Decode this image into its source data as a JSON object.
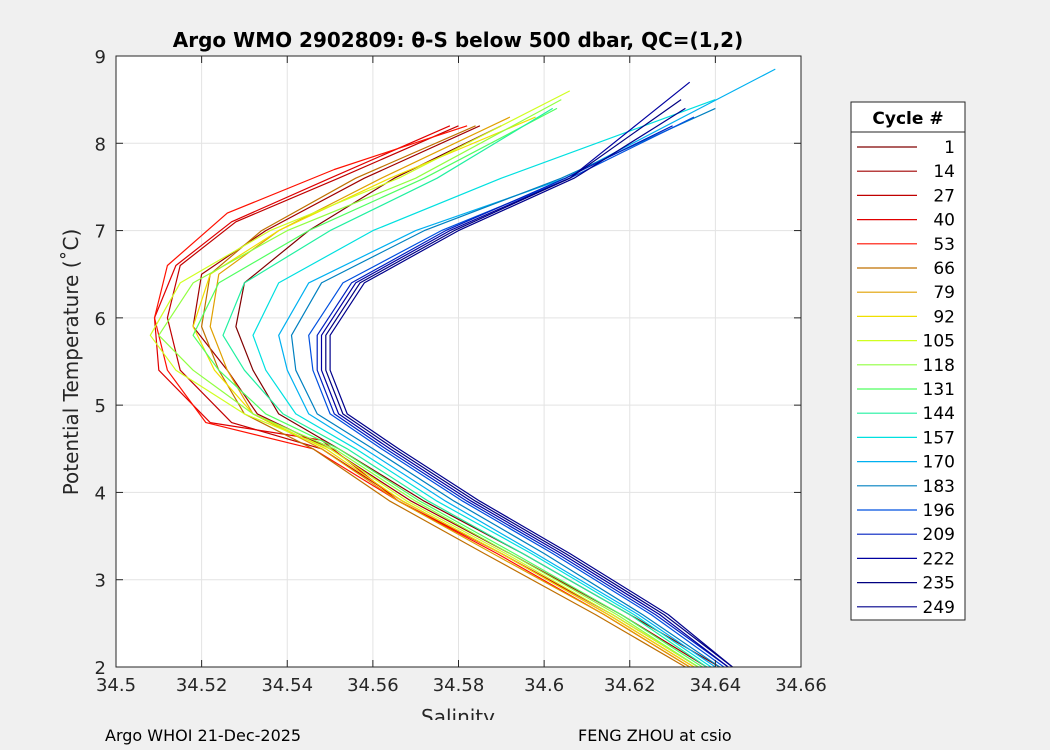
{
  "chart_data": {
    "type": "line",
    "title": "Argo WMO 2902809: θ-S below 500 dbar,  QC=(1,2)",
    "xlabel": "Salinity",
    "ylabel": "Potential Temperature (˚C)",
    "xlim": [
      34.5,
      34.66
    ],
    "ylim": [
      2,
      9
    ],
    "xticks": [
      "34.5",
      "34.52",
      "34.54",
      "34.56",
      "34.58",
      "34.6",
      "34.62",
      "34.64",
      "34.66"
    ],
    "yticks": [
      "2",
      "3",
      "4",
      "5",
      "6",
      "7",
      "8",
      "9"
    ],
    "grid": true,
    "legend": {
      "title": "Cycle #",
      "placement": "right-outside",
      "entries": [
        {
          "label": "1",
          "color": "#800000"
        },
        {
          "label": "14",
          "color": "#a00000"
        },
        {
          "label": "27",
          "color": "#c00000"
        },
        {
          "label": "40",
          "color": "#e00000"
        },
        {
          "label": "53",
          "color": "#ff1000"
        },
        {
          "label": "66",
          "color": "#c07000"
        },
        {
          "label": "79",
          "color": "#e0a000"
        },
        {
          "label": "92",
          "color": "#f0e000"
        },
        {
          "label": "105",
          "color": "#d0ff20"
        },
        {
          "label": "118",
          "color": "#90ff40"
        },
        {
          "label": "131",
          "color": "#50ff60"
        },
        {
          "label": "144",
          "color": "#20f0a0"
        },
        {
          "label": "157",
          "color": "#00e0e0"
        },
        {
          "label": "170",
          "color": "#00b0f0"
        },
        {
          "label": "183",
          "color": "#0080c0"
        },
        {
          "label": "196",
          "color": "#0050e0"
        },
        {
          "label": "209",
          "color": "#0020c0"
        },
        {
          "label": "222",
          "color": "#0000a0"
        },
        {
          "label": "235",
          "color": "#000080"
        },
        {
          "label": "249",
          "color": "#00008c"
        }
      ]
    },
    "series": [
      {
        "name": "1",
        "x": [
          34.641,
          34.62,
          34.595,
          34.572,
          34.552,
          34.538,
          34.532,
          34.528,
          34.53,
          34.545,
          34.565,
          34.59
        ],
        "y": [
          2.0,
          2.6,
          3.3,
          3.9,
          4.5,
          4.9,
          5.4,
          5.9,
          6.4,
          7.0,
          7.6,
          8.2
        ]
      },
      {
        "name": "14",
        "x": [
          34.638,
          34.618,
          34.592,
          34.569,
          34.55,
          34.533,
          34.526,
          34.518,
          34.52,
          34.535,
          34.558,
          34.585
        ],
        "y": [
          2.0,
          2.6,
          3.3,
          3.9,
          4.5,
          4.9,
          5.4,
          5.9,
          6.5,
          7.0,
          7.6,
          8.2
        ]
      },
      {
        "name": "27",
        "x": [
          34.636,
          34.616,
          34.59,
          34.567,
          34.548,
          34.527,
          34.515,
          34.512,
          34.515,
          34.528,
          34.552,
          34.58
        ],
        "y": [
          2.0,
          2.6,
          3.3,
          3.9,
          4.5,
          4.8,
          5.4,
          6.0,
          6.6,
          7.1,
          7.6,
          8.2
        ]
      },
      {
        "name": "40",
        "x": [
          34.635,
          34.615,
          34.59,
          34.566,
          34.548,
          34.522,
          34.51,
          34.509,
          34.514,
          34.527,
          34.55,
          34.578
        ],
        "y": [
          2.0,
          2.6,
          3.3,
          3.9,
          4.6,
          4.8,
          5.4,
          6.0,
          6.6,
          7.1,
          7.6,
          8.2
        ]
      },
      {
        "name": "53",
        "x": [
          34.634,
          34.614,
          34.589,
          34.566,
          34.546,
          34.521,
          34.512,
          34.509,
          34.512,
          34.526,
          34.551,
          34.582
        ],
        "y": [
          2.0,
          2.6,
          3.3,
          3.9,
          4.5,
          4.8,
          5.4,
          6.0,
          6.6,
          7.2,
          7.7,
          8.2
        ]
      },
      {
        "name": "66",
        "x": [
          34.633,
          34.612,
          34.586,
          34.564,
          34.546,
          34.53,
          34.524,
          34.52,
          34.522,
          34.534,
          34.556,
          34.584
        ],
        "y": [
          2.0,
          2.6,
          3.3,
          3.9,
          4.5,
          4.9,
          5.4,
          5.9,
          6.5,
          7.0,
          7.6,
          8.2
        ]
      },
      {
        "name": "79",
        "x": [
          34.634,
          34.614,
          34.588,
          34.566,
          34.548,
          34.532,
          34.526,
          34.522,
          34.524,
          34.538,
          34.562,
          34.592
        ],
        "y": [
          2.0,
          2.6,
          3.3,
          3.9,
          4.5,
          4.9,
          5.4,
          5.9,
          6.5,
          7.0,
          7.6,
          8.3
        ]
      },
      {
        "name": "92",
        "x": [
          34.635,
          34.615,
          34.59,
          34.567,
          34.549,
          34.532,
          34.523,
          34.518,
          34.522,
          34.538,
          34.564,
          34.598
        ],
        "y": [
          2.0,
          2.6,
          3.3,
          3.9,
          4.5,
          4.9,
          5.4,
          5.9,
          6.5,
          7.0,
          7.6,
          8.3
        ]
      },
      {
        "name": "105",
        "x": [
          34.636,
          34.616,
          34.591,
          34.568,
          34.55,
          34.53,
          34.514,
          34.508,
          34.515,
          34.536,
          34.566,
          34.606
        ],
        "y": [
          2.0,
          2.6,
          3.3,
          3.9,
          4.5,
          4.9,
          5.4,
          5.8,
          6.4,
          7.0,
          7.6,
          8.6
        ]
      },
      {
        "name": "118",
        "x": [
          34.636,
          34.617,
          34.592,
          34.57,
          34.551,
          34.532,
          34.518,
          34.51,
          34.518,
          34.54,
          34.57,
          34.604
        ],
        "y": [
          2.0,
          2.6,
          3.3,
          3.9,
          4.5,
          4.9,
          5.4,
          5.8,
          6.4,
          7.0,
          7.6,
          8.5
        ]
      },
      {
        "name": "131",
        "x": [
          34.637,
          34.618,
          34.593,
          34.571,
          34.552,
          34.535,
          34.524,
          34.518,
          34.524,
          34.545,
          34.572,
          34.603
        ],
        "y": [
          2.0,
          2.6,
          3.3,
          3.9,
          4.5,
          4.9,
          5.4,
          5.8,
          6.4,
          7.0,
          7.6,
          8.4
        ]
      },
      {
        "name": "144",
        "x": [
          34.638,
          34.62,
          34.595,
          34.573,
          34.554,
          34.539,
          34.53,
          34.525,
          34.53,
          34.55,
          34.575,
          34.602
        ],
        "y": [
          2.0,
          2.6,
          3.3,
          3.9,
          4.5,
          4.9,
          5.4,
          5.8,
          6.4,
          7.0,
          7.6,
          8.4
        ]
      },
      {
        "name": "157",
        "x": [
          34.639,
          34.621,
          34.597,
          34.575,
          34.556,
          34.542,
          34.535,
          34.532,
          34.538,
          34.56,
          34.59,
          34.64
        ],
        "y": [
          2.0,
          2.6,
          3.3,
          3.9,
          4.5,
          4.9,
          5.4,
          5.8,
          6.4,
          7.0,
          7.6,
          8.5
        ]
      },
      {
        "name": "170",
        "x": [
          34.64,
          34.622,
          34.598,
          34.577,
          34.558,
          34.545,
          34.54,
          34.538,
          34.545,
          34.57,
          34.605,
          34.654
        ],
        "y": [
          2.0,
          2.6,
          3.3,
          3.9,
          4.5,
          4.9,
          5.4,
          5.8,
          6.4,
          7.0,
          7.6,
          8.85
        ]
      },
      {
        "name": "183",
        "x": [
          34.641,
          34.623,
          34.6,
          34.579,
          34.56,
          34.547,
          34.542,
          34.541,
          34.548,
          34.572,
          34.604,
          34.64
        ],
        "y": [
          2.0,
          2.6,
          3.3,
          3.9,
          4.5,
          4.9,
          5.4,
          5.8,
          6.4,
          7.0,
          7.6,
          8.4
        ]
      },
      {
        "name": "196",
        "x": [
          34.642,
          34.625,
          34.602,
          34.581,
          34.562,
          34.55,
          34.546,
          34.545,
          34.553,
          34.576,
          34.606,
          34.635
        ],
        "y": [
          2.0,
          2.6,
          3.3,
          3.9,
          4.5,
          4.9,
          5.4,
          5.8,
          6.4,
          7.0,
          7.6,
          8.3
        ]
      },
      {
        "name": "209",
        "x": [
          34.643,
          34.626,
          34.603,
          34.582,
          34.563,
          34.551,
          34.547,
          34.547,
          34.555,
          34.577,
          34.605,
          34.63
        ],
        "y": [
          2.0,
          2.6,
          3.3,
          3.9,
          4.5,
          4.9,
          5.4,
          5.8,
          6.4,
          7.0,
          7.6,
          8.2
        ]
      },
      {
        "name": "222",
        "x": [
          34.643,
          34.627,
          34.604,
          34.583,
          34.564,
          34.552,
          34.548,
          34.548,
          34.556,
          34.578,
          34.606,
          34.634
        ],
        "y": [
          2.0,
          2.6,
          3.3,
          3.9,
          4.5,
          4.9,
          5.4,
          5.8,
          6.4,
          7.0,
          7.6,
          8.7
        ]
      },
      {
        "name": "235",
        "x": [
          34.644,
          34.628,
          34.605,
          34.584,
          34.565,
          34.553,
          34.549,
          34.549,
          34.557,
          34.579,
          34.606,
          34.632
        ],
        "y": [
          2.0,
          2.6,
          3.3,
          3.9,
          4.5,
          4.9,
          5.4,
          5.8,
          6.4,
          7.0,
          7.6,
          8.5
        ]
      },
      {
        "name": "249",
        "x": [
          34.644,
          34.629,
          34.606,
          34.585,
          34.566,
          34.554,
          34.55,
          34.55,
          34.558,
          34.58,
          34.607,
          34.633
        ],
        "y": [
          2.0,
          2.6,
          3.3,
          3.9,
          4.5,
          4.9,
          5.4,
          5.8,
          6.4,
          7.0,
          7.6,
          8.4
        ]
      }
    ]
  },
  "footer": {
    "left": "Argo WHOI 21-Dec-2025",
    "right": "FENG ZHOU at csio"
  }
}
